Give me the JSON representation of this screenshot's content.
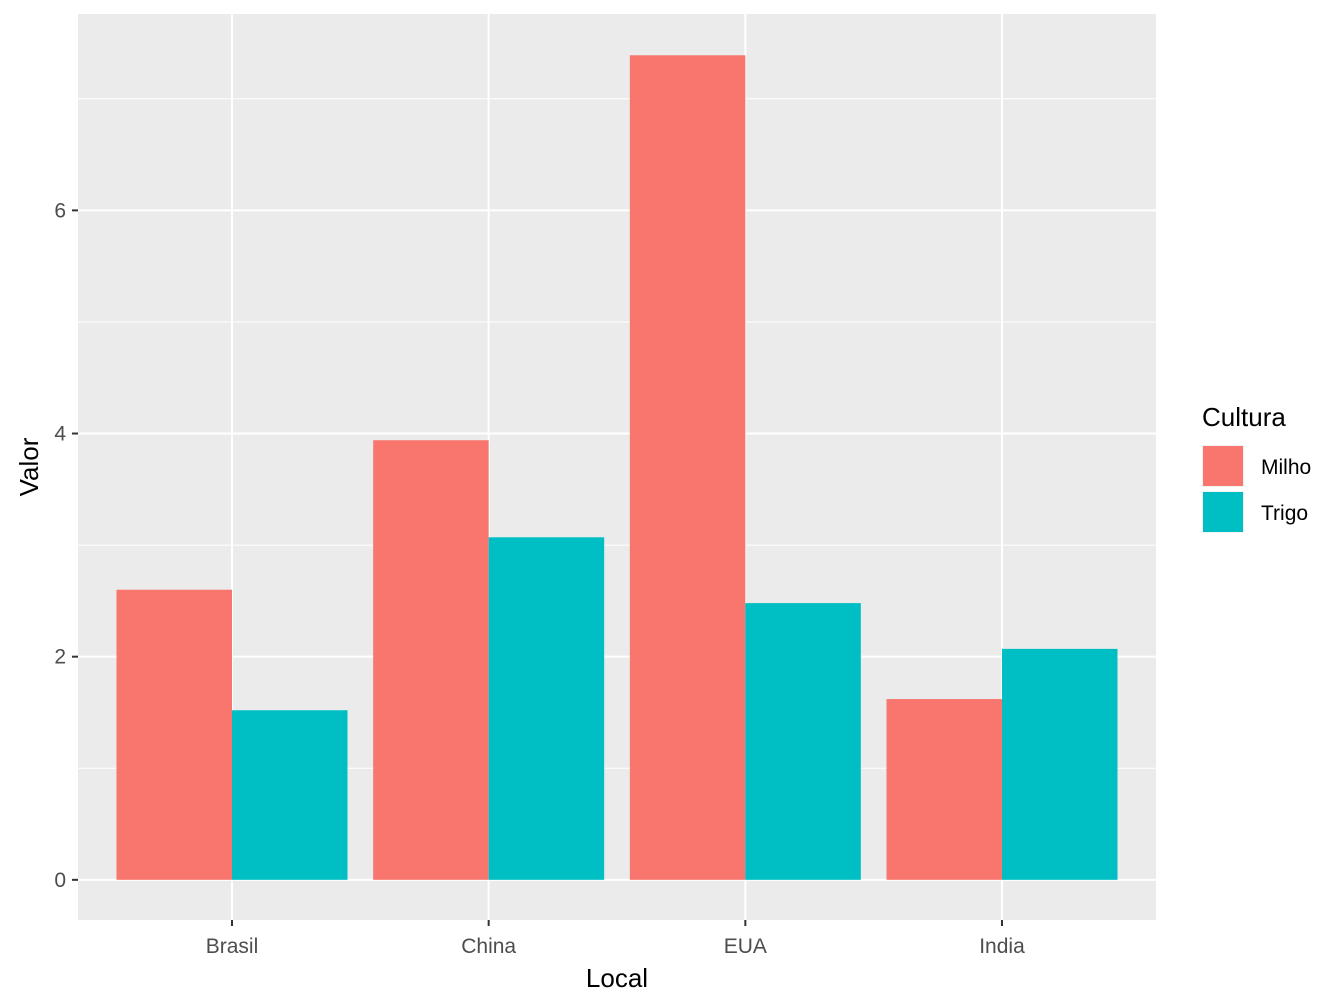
{
  "chart_data": {
    "type": "bar",
    "categories": [
      "Brasil",
      "China",
      "EUA",
      "India"
    ],
    "series": [
      {
        "name": "Milho",
        "color": "#F8766D",
        "values": [
          2.6,
          3.94,
          7.39,
          1.62
        ]
      },
      {
        "name": "Trigo",
        "color": "#00BFC4",
        "values": [
          1.52,
          3.07,
          2.48,
          2.07
        ]
      }
    ],
    "xlabel": "Local",
    "ylabel": "Valor",
    "ylim": [
      -0.36,
      7.76
    ],
    "yticks": [
      0,
      2,
      4,
      6
    ],
    "legend": {
      "title": "Cultura",
      "position": "right"
    },
    "grid": true,
    "panel_color": "#EBEBEB",
    "grid_color": "#FFFFFF"
  }
}
